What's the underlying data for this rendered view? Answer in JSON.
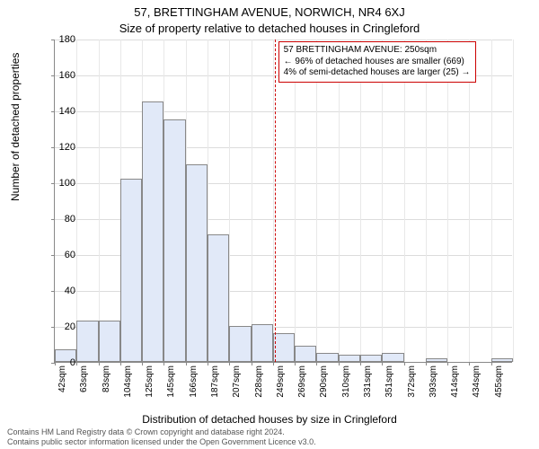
{
  "title_line_1": "57, BRETTINGHAM AVENUE, NORWICH, NR4 6XJ",
  "title_line_2": "Size of property relative to detached houses in Cringleford",
  "ylabel": "Number of detached properties",
  "xlabel": "Distribution of detached houses by size in Cringleford",
  "footer_line_1": "Contains HM Land Registry data © Crown copyright and database right 2024.",
  "footer_line_2": "Contains public sector information licensed under the Open Government Licence v3.0.",
  "chart": {
    "type": "histogram",
    "ylim": [
      0,
      180
    ],
    "ytick_step": 20,
    "n_bins": 21,
    "x_start": 42,
    "x_step": 20.65,
    "x_unit": "sqm",
    "bar_fill": "#e1e9f8",
    "bar_border": "#888888",
    "grid_color": "#dcdcdc",
    "vgrid_color": "#e8e8e8",
    "values": [
      7,
      23,
      23,
      102,
      145,
      135,
      110,
      71,
      20,
      21,
      16,
      9,
      5,
      4,
      4,
      5,
      0,
      2,
      0,
      0,
      2
    ],
    "xtick_labels": [
      "42sqm",
      "63sqm",
      "83sqm",
      "104sqm",
      "125sqm",
      "145sqm",
      "166sqm",
      "187sqm",
      "207sqm",
      "228sqm",
      "249sqm",
      "269sqm",
      "290sqm",
      "310sqm",
      "331sqm",
      "351sqm",
      "372sqm",
      "393sqm",
      "414sqm",
      "434sqm",
      "455sqm"
    ]
  },
  "marker": {
    "x_value": 250,
    "line_color": "#cc0000",
    "box_border": "#cc0000",
    "line1": "57 BRETTINGHAM AVENUE: 250sqm",
    "line2": "← 96% of detached houses are smaller (669)",
    "line3": "4% of semi-detached houses are larger (25) →"
  },
  "fonts": {
    "title_size": 13,
    "label_size": 12,
    "tick_size": 11,
    "footer_size": 9,
    "callout_size": 10
  }
}
